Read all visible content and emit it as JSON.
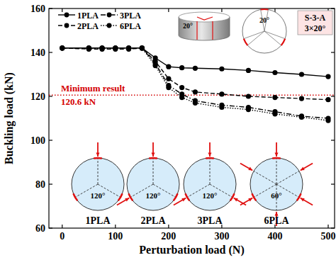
{
  "chart_data": {
    "type": "line",
    "x_label": "Perturbation load (N)",
    "y_label": "Buckling load (kN)",
    "x": [
      0,
      50,
      75,
      100,
      125,
      150,
      175,
      200,
      225,
      250,
      300,
      350,
      400,
      450,
      500
    ],
    "series": [
      {
        "name": "1PLA",
        "color": "#000000",
        "marker": "circle",
        "line_style": "solid",
        "values": [
          142,
          142,
          142,
          142,
          142,
          142,
          137.5,
          133.5,
          133,
          132.8,
          132.5,
          131.8,
          130.8,
          130,
          129
        ]
      },
      {
        "name": "2PLA",
        "color": "#000000",
        "marker": "circle",
        "line_style": "dashed",
        "values": [
          142,
          141.5,
          141.5,
          141.5,
          141.5,
          142,
          136,
          128,
          124,
          122,
          121,
          120,
          119.5,
          119,
          118.5
        ]
      },
      {
        "name": "3PLA",
        "color": "#000000",
        "marker": "circle",
        "line_style": "dashdot",
        "values": [
          142,
          142,
          142,
          142,
          142,
          142,
          135,
          125,
          121,
          118,
          116,
          115,
          113,
          111,
          110
        ]
      },
      {
        "name": "6PLA",
        "color": "#000000",
        "marker": "circle",
        "line_style": "dotted",
        "values": [
          142,
          142,
          142,
          142,
          142,
          142,
          134,
          124,
          119.5,
          117,
          115,
          114,
          112,
          110.5,
          109
        ]
      }
    ],
    "xlim": [
      -25,
      512
    ],
    "xticks": [
      0,
      100,
      200,
      300,
      400,
      500
    ],
    "ylim": [
      60,
      160
    ],
    "yticks": [
      60,
      80,
      100,
      120,
      140,
      160
    ],
    "legend": "upper-left",
    "grid": false,
    "reference_line": {
      "value": 120.6,
      "text": "Minimum result",
      "value_label": "120.6 kN",
      "color": "#d40000"
    },
    "case_box": {
      "title": "S-3-A",
      "subtitle": "3×20°"
    },
    "inset_labels": [
      "20°",
      "20°"
    ],
    "diagrams": [
      {
        "label": "1PLA",
        "angle": "120°",
        "arrows": 1
      },
      {
        "label": "2PLA",
        "angle": "120°",
        "arrows": 2
      },
      {
        "label": "3PLA",
        "angle": "120°",
        "arrows": 3
      },
      {
        "label": "6PLA",
        "angle": "60°",
        "arrows": 6
      }
    ]
  }
}
